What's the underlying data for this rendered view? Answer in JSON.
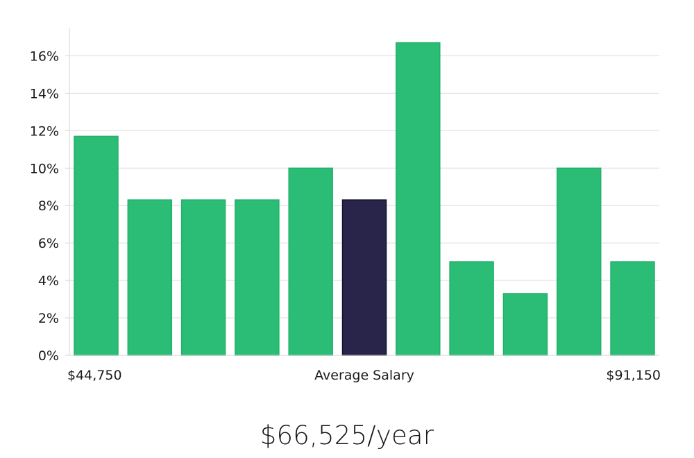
{
  "colors": {
    "bar": "#2bbd76",
    "bar_stroke": "#22b06a",
    "highlight_bar": "#29254a",
    "highlight_stroke": "#14112b",
    "grid": "#dcdcdc",
    "axis": "#d6d6d6"
  },
  "chart_data": {
    "type": "bar",
    "title": "",
    "xlabel": "Average Salary",
    "ylabel": "",
    "x_min_label": "$44,750",
    "x_max_label": "$91,150",
    "highlight_index": 5,
    "values": [
      11.7,
      8.3,
      8.3,
      8.3,
      10.0,
      8.3,
      16.7,
      5.0,
      3.3,
      10.0,
      5.0
    ],
    "ylim": [
      0,
      17.5
    ],
    "yticks": [
      0,
      2,
      4,
      6,
      8,
      10,
      12,
      14,
      16
    ],
    "ytick_labels": [
      "0%",
      "2%",
      "4%",
      "6%",
      "8%",
      "10%",
      "12%",
      "14%",
      "16%"
    ],
    "grid": true,
    "legend": "none"
  },
  "summary": {
    "average_salary": "$66,525/year"
  }
}
